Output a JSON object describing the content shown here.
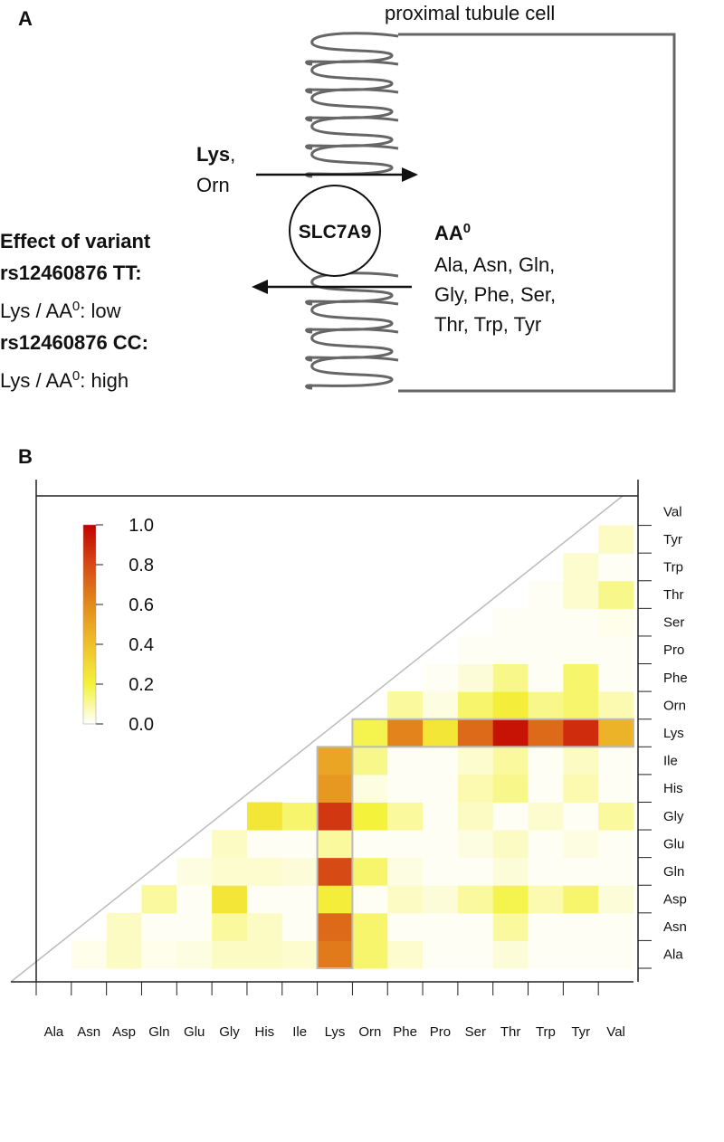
{
  "panel_a": {
    "label": "A",
    "cell_label": "proximal tubule cell",
    "transporter": "SLC7A9",
    "influx": {
      "bold": "Lys",
      "comma": ",",
      "rest": "Orn"
    },
    "efflux": {
      "title": "AA",
      "title_sup": "0",
      "lines": [
        "Ala, Asn, Gln,",
        "Gly, Phe, Ser,",
        "Thr,  Trp, Tyr"
      ]
    },
    "effect": {
      "title": "Effect of variant",
      "tt": "rs12460876 TT:",
      "tt_ratio": "Lys / AA",
      "tt_sup": "0",
      "tt_result": ": low",
      "cc": "rs12460876 CC:",
      "cc_ratio": "Lys / AA",
      "cc_sup": "0",
      "cc_result": ": high"
    }
  },
  "panel_b_label": "B",
  "chart_data": {
    "type": "heatmap",
    "columns": [
      "Ala",
      "Asn",
      "Asp",
      "Gln",
      "Glu",
      "Gly",
      "His",
      "Ile",
      "Lys",
      "Orn",
      "Phe",
      "Pro",
      "Ser",
      "Thr",
      "Trp",
      "Tyr",
      "Val"
    ],
    "rows": [
      "Ala",
      "Asn",
      "Asp",
      "Gln",
      "Glu",
      "Gly",
      "His",
      "Ile",
      "Lys",
      "Orn",
      "Phe",
      "Pro",
      "Ser",
      "Thr",
      "Trp",
      "Tyr",
      "Val"
    ],
    "matrix": [
      [
        null,
        0.02,
        0.06,
        0.02,
        0.03,
        0.06,
        0.06,
        0.05,
        0.65,
        0.15,
        0.05,
        0.01,
        0.01,
        0.04,
        0.01,
        0.01,
        0.01
      ],
      [
        null,
        null,
        0.06,
        0.01,
        0.01,
        0.1,
        0.06,
        0.01,
        0.7,
        0.15,
        0.01,
        0.01,
        0.01,
        0.1,
        0.01,
        0.01,
        0.01
      ],
      [
        null,
        null,
        null,
        0.1,
        0.01,
        0.25,
        0.01,
        0.01,
        0.22,
        0.01,
        0.06,
        0.04,
        0.1,
        0.18,
        0.08,
        0.15,
        0.04
      ],
      [
        null,
        null,
        null,
        null,
        0.03,
        0.05,
        0.05,
        0.04,
        0.8,
        0.15,
        0.03,
        0.01,
        0.01,
        0.04,
        0.01,
        0.01,
        0.01
      ],
      [
        null,
        null,
        null,
        null,
        null,
        0.06,
        0.01,
        0.01,
        0.1,
        0.01,
        0.01,
        0.01,
        0.03,
        0.06,
        0.01,
        0.03,
        0.01
      ],
      [
        null,
        null,
        null,
        null,
        null,
        null,
        0.25,
        0.15,
        0.85,
        0.2,
        0.1,
        0.01,
        0.06,
        0.01,
        0.05,
        0.01,
        0.1
      ],
      [
        null,
        null,
        null,
        null,
        null,
        null,
        null,
        0.0,
        0.55,
        0.03,
        0.01,
        0.01,
        0.08,
        0.12,
        0.01,
        0.08,
        0.01
      ],
      [
        null,
        null,
        null,
        null,
        null,
        null,
        null,
        null,
        0.5,
        0.12,
        0.01,
        0.01,
        0.05,
        0.1,
        0.01,
        0.06,
        0.01
      ],
      [
        null,
        null,
        null,
        null,
        null,
        null,
        null,
        null,
        null,
        0.18,
        0.62,
        0.25,
        0.7,
        0.95,
        0.7,
        0.88,
        0.45
      ],
      [
        null,
        null,
        null,
        null,
        null,
        null,
        null,
        null,
        null,
        null,
        0.1,
        0.03,
        0.15,
        0.22,
        0.12,
        0.15,
        0.08
      ],
      [
        null,
        null,
        null,
        null,
        null,
        null,
        null,
        null,
        null,
        null,
        null,
        0.01,
        0.04,
        0.12,
        0.01,
        0.15,
        0.01
      ],
      [
        null,
        null,
        null,
        null,
        null,
        null,
        null,
        null,
        null,
        null,
        null,
        null,
        0.01,
        0.01,
        0.01,
        0.01,
        0.01
      ],
      [
        null,
        null,
        null,
        null,
        null,
        null,
        null,
        null,
        null,
        null,
        null,
        null,
        null,
        0.01,
        0.01,
        0.01,
        0.02
      ],
      [
        null,
        null,
        null,
        null,
        null,
        null,
        null,
        null,
        null,
        null,
        null,
        null,
        null,
        null,
        0.01,
        0.05,
        0.12
      ],
      [
        null,
        null,
        null,
        null,
        null,
        null,
        null,
        null,
        null,
        null,
        null,
        null,
        null,
        null,
        null,
        0.05,
        0.01
      ],
      [
        null,
        null,
        null,
        null,
        null,
        null,
        null,
        null,
        null,
        null,
        null,
        null,
        null,
        null,
        null,
        null,
        0.06
      ],
      [
        null,
        null,
        null,
        null,
        null,
        null,
        null,
        null,
        null,
        null,
        null,
        null,
        null,
        null,
        null,
        null,
        null
      ]
    ],
    "zlim": [
      0,
      1
    ],
    "zticks": [
      {
        "value": 0,
        "label": "0.0"
      },
      {
        "value": 0.2,
        "label": "0.2"
      },
      {
        "value": 0.4,
        "label": "0.4"
      },
      {
        "value": 0.6,
        "label": "0.6"
      },
      {
        "value": 0.8,
        "label": "0.8"
      },
      {
        "value": 1,
        "label": "1.0"
      }
    ],
    "colorscale": [
      "#ffffff",
      "#f4f23a",
      "#f0c02c",
      "#e38a1c",
      "#d64a16",
      "#c20000"
    ],
    "highlight": "Lys"
  }
}
